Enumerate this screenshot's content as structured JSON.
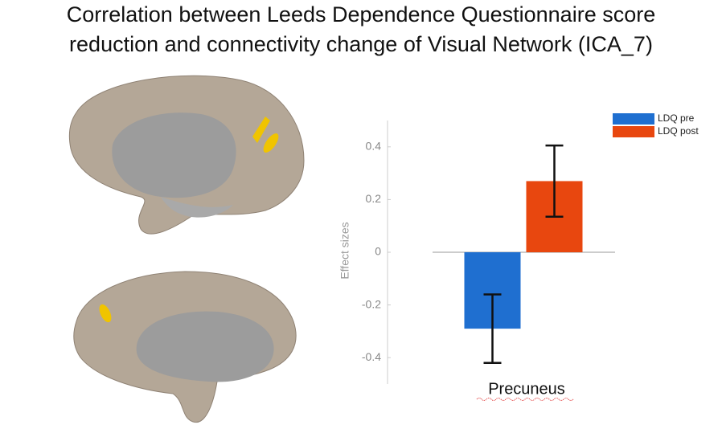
{
  "chart_data": {
    "type": "bar",
    "title": [
      "Correlation between Leeds Dependence Questionnaire score",
      "reduction and connectivity change of Visual Network (ICA_7)"
    ],
    "y_label": "Effect sizes",
    "categories": [
      "Precuneus"
    ],
    "series": [
      {
        "name": "LDQ pre",
        "color": "#1f6fd0",
        "values": [
          -0.29
        ],
        "errors": [
          0.13
        ]
      },
      {
        "name": "LDQ post",
        "color": "#e8470f",
        "values": [
          0.27
        ],
        "errors": [
          0.135
        ]
      }
    ],
    "ylim": [
      -0.5,
      0.5
    ],
    "yticks": [
      -0.4,
      -0.2,
      0,
      0.2,
      0.4
    ],
    "legend": "upper right"
  }
}
